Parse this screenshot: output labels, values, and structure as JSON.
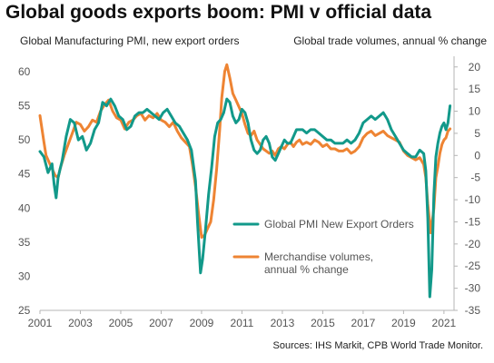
{
  "title": "Global goods exports boom: PMI v official data",
  "source": "Sources: IHS Markit, CPB World Trade Monitor.",
  "colors": {
    "pmi": "#12998a",
    "merch": "#ee8433",
    "axis": "#b5b5b5"
  },
  "chart_data": {
    "type": "line",
    "grid": false,
    "legend_position": "center-right",
    "x_tick_labels": [
      "2001",
      "2003",
      "2005",
      "2007",
      "2009",
      "2011",
      "2013",
      "2015",
      "2017",
      "2019",
      "2021"
    ],
    "xlim": [
      2001,
      2021.5
    ],
    "left_axis": {
      "label": "Global Manufacturing PMI, new export orders",
      "ylim": [
        25,
        62
      ],
      "ticks": [
        25,
        30,
        35,
        40,
        45,
        50,
        55,
        60
      ]
    },
    "right_axis": {
      "label": "Global trade volumes,  annual % change",
      "ylim": [
        -35,
        22
      ],
      "ticks": [
        -35,
        -30,
        -25,
        -20,
        -15,
        -10,
        -5,
        0,
        5,
        10,
        15,
        20
      ]
    },
    "series": [
      {
        "name": "Global PMI New Export Orders",
        "axis": "left",
        "color": "#12998a",
        "points": [
          [
            2001.0,
            48.3
          ],
          [
            2001.2,
            47.5
          ],
          [
            2001.4,
            45.2
          ],
          [
            2001.6,
            46.5
          ],
          [
            2001.7,
            43.5
          ],
          [
            2001.8,
            41.5
          ],
          [
            2001.9,
            44.5
          ],
          [
            2002.1,
            47.0
          ],
          [
            2002.3,
            50.5
          ],
          [
            2002.5,
            53.0
          ],
          [
            2002.7,
            52.5
          ],
          [
            2002.9,
            50.0
          ],
          [
            2003.1,
            50.5
          ],
          [
            2003.3,
            48.5
          ],
          [
            2003.5,
            49.5
          ],
          [
            2003.7,
            51.5
          ],
          [
            2003.9,
            52.5
          ],
          [
            2004.1,
            55.5
          ],
          [
            2004.3,
            55.0
          ],
          [
            2004.5,
            56.0
          ],
          [
            2004.7,
            55.0
          ],
          [
            2004.9,
            53.5
          ],
          [
            2005.1,
            53.0
          ],
          [
            2005.3,
            51.5
          ],
          [
            2005.5,
            52.0
          ],
          [
            2005.7,
            53.5
          ],
          [
            2005.9,
            54.0
          ],
          [
            2006.1,
            54.0
          ],
          [
            2006.3,
            54.5
          ],
          [
            2006.5,
            54.0
          ],
          [
            2006.7,
            53.5
          ],
          [
            2006.9,
            53.0
          ],
          [
            2007.1,
            54.0
          ],
          [
            2007.3,
            54.5
          ],
          [
            2007.5,
            53.5
          ],
          [
            2007.7,
            52.5
          ],
          [
            2007.9,
            52.0
          ],
          [
            2008.1,
            51.0
          ],
          [
            2008.3,
            50.0
          ],
          [
            2008.5,
            48.5
          ],
          [
            2008.7,
            44.0
          ],
          [
            2008.8,
            38.0
          ],
          [
            2008.9,
            33.0
          ],
          [
            2008.95,
            30.5
          ],
          [
            2009.05,
            32.5
          ],
          [
            2009.2,
            37.0
          ],
          [
            2009.35,
            42.0
          ],
          [
            2009.5,
            46.0
          ],
          [
            2009.65,
            50.5
          ],
          [
            2009.8,
            52.5
          ],
          [
            2009.95,
            53.0
          ],
          [
            2010.1,
            54.0
          ],
          [
            2010.25,
            56.0
          ],
          [
            2010.4,
            55.5
          ],
          [
            2010.55,
            53.5
          ],
          [
            2010.7,
            52.5
          ],
          [
            2010.85,
            53.0
          ],
          [
            2011.0,
            54.5
          ],
          [
            2011.15,
            54.0
          ],
          [
            2011.3,
            52.5
          ],
          [
            2011.45,
            50.0
          ],
          [
            2011.6,
            48.5
          ],
          [
            2011.75,
            48.0
          ],
          [
            2011.9,
            48.5
          ],
          [
            2012.05,
            50.0
          ],
          [
            2012.2,
            50.5
          ],
          [
            2012.35,
            49.5
          ],
          [
            2012.5,
            47.5
          ],
          [
            2012.65,
            47.0
          ],
          [
            2012.8,
            48.0
          ],
          [
            2012.95,
            49.0
          ],
          [
            2013.1,
            50.0
          ],
          [
            2013.25,
            49.5
          ],
          [
            2013.4,
            49.5
          ],
          [
            2013.55,
            50.5
          ],
          [
            2013.7,
            51.5
          ],
          [
            2013.85,
            51.5
          ],
          [
            2014.0,
            51.5
          ],
          [
            2014.2,
            51.0
          ],
          [
            2014.4,
            51.5
          ],
          [
            2014.6,
            51.5
          ],
          [
            2014.8,
            51.0
          ],
          [
            2015.0,
            50.5
          ],
          [
            2015.2,
            50.0
          ],
          [
            2015.4,
            50.0
          ],
          [
            2015.6,
            49.5
          ],
          [
            2015.8,
            49.5
          ],
          [
            2016.0,
            49.5
          ],
          [
            2016.2,
            50.0
          ],
          [
            2016.4,
            49.5
          ],
          [
            2016.6,
            50.0
          ],
          [
            2016.8,
            51.0
          ],
          [
            2017.0,
            52.5
          ],
          [
            2017.2,
            53.0
          ],
          [
            2017.4,
            53.5
          ],
          [
            2017.6,
            53.0
          ],
          [
            2017.8,
            53.5
          ],
          [
            2018.0,
            54.0
          ],
          [
            2018.2,
            53.0
          ],
          [
            2018.4,
            51.5
          ],
          [
            2018.6,
            50.5
          ],
          [
            2018.8,
            49.5
          ],
          [
            2019.0,
            48.5
          ],
          [
            2019.2,
            48.0
          ],
          [
            2019.4,
            47.5
          ],
          [
            2019.6,
            47.5
          ],
          [
            2019.8,
            48.5
          ],
          [
            2020.0,
            48.0
          ],
          [
            2020.1,
            45.5
          ],
          [
            2020.2,
            38.5
          ],
          [
            2020.3,
            27.0
          ],
          [
            2020.4,
            31.0
          ],
          [
            2020.5,
            42.0
          ],
          [
            2020.6,
            47.5
          ],
          [
            2020.7,
            49.5
          ],
          [
            2020.8,
            51.0
          ],
          [
            2020.9,
            52.0
          ],
          [
            2021.0,
            52.5
          ],
          [
            2021.1,
            51.5
          ],
          [
            2021.2,
            52.5
          ],
          [
            2021.3,
            55.0
          ]
        ]
      },
      {
        "name": "Merchandise volumes, annual % change",
        "axis": "right",
        "color": "#ee8433",
        "points": [
          [
            2001.0,
            9.0
          ],
          [
            2001.1,
            6.0
          ],
          [
            2001.2,
            3.0
          ],
          [
            2001.3,
            0.0
          ],
          [
            2001.45,
            -1.5
          ],
          [
            2001.6,
            -3.0
          ],
          [
            2001.75,
            -4.5
          ],
          [
            2001.9,
            -5.0
          ],
          [
            2002.0,
            -3.0
          ],
          [
            2002.2,
            0.0
          ],
          [
            2002.4,
            2.5
          ],
          [
            2002.6,
            5.0
          ],
          [
            2002.8,
            7.5
          ],
          [
            2003.0,
            7.0
          ],
          [
            2003.2,
            5.5
          ],
          [
            2003.4,
            6.5
          ],
          [
            2003.6,
            8.0
          ],
          [
            2003.8,
            7.5
          ],
          [
            2004.0,
            10.0
          ],
          [
            2004.2,
            11.5
          ],
          [
            2004.4,
            12.5
          ],
          [
            2004.6,
            10.0
          ],
          [
            2004.8,
            8.5
          ],
          [
            2005.0,
            8.0
          ],
          [
            2005.2,
            6.0
          ],
          [
            2005.4,
            7.5
          ],
          [
            2005.6,
            8.0
          ],
          [
            2005.8,
            9.0
          ],
          [
            2006.0,
            9.5
          ],
          [
            2006.2,
            8.0
          ],
          [
            2006.4,
            9.0
          ],
          [
            2006.6,
            8.5
          ],
          [
            2006.8,
            9.5
          ],
          [
            2007.0,
            8.0
          ],
          [
            2007.2,
            7.5
          ],
          [
            2007.4,
            6.5
          ],
          [
            2007.6,
            7.5
          ],
          [
            2007.8,
            5.5
          ],
          [
            2008.0,
            4.0
          ],
          [
            2008.2,
            3.0
          ],
          [
            2008.4,
            2.0
          ],
          [
            2008.55,
            -2.0
          ],
          [
            2008.7,
            -7.0
          ],
          [
            2008.85,
            -13.0
          ],
          [
            2009.0,
            -18.5
          ],
          [
            2009.15,
            -18.0
          ],
          [
            2009.3,
            -16.5
          ],
          [
            2009.45,
            -15.0
          ],
          [
            2009.6,
            -10.0
          ],
          [
            2009.75,
            -3.0
          ],
          [
            2009.9,
            6.0
          ],
          [
            2010.0,
            13.0
          ],
          [
            2010.15,
            19.0
          ],
          [
            2010.25,
            20.5
          ],
          [
            2010.4,
            17.5
          ],
          [
            2010.55,
            14.0
          ],
          [
            2010.7,
            12.5
          ],
          [
            2010.85,
            11.0
          ],
          [
            2011.0,
            9.5
          ],
          [
            2011.15,
            7.0
          ],
          [
            2011.3,
            5.0
          ],
          [
            2011.45,
            4.5
          ],
          [
            2011.6,
            5.5
          ],
          [
            2011.75,
            3.5
          ],
          [
            2011.9,
            2.5
          ],
          [
            2012.05,
            1.5
          ],
          [
            2012.2,
            1.0
          ],
          [
            2012.35,
            0.5
          ],
          [
            2012.5,
            1.0
          ],
          [
            2012.65,
            0.0
          ],
          [
            2012.8,
            1.5
          ],
          [
            2012.95,
            2.0
          ],
          [
            2013.1,
            1.5
          ],
          [
            2013.25,
            2.5
          ],
          [
            2013.4,
            3.0
          ],
          [
            2013.55,
            2.0
          ],
          [
            2013.7,
            3.0
          ],
          [
            2013.85,
            3.5
          ],
          [
            2014.0,
            2.5
          ],
          [
            2014.2,
            3.0
          ],
          [
            2014.4,
            2.5
          ],
          [
            2014.6,
            3.5
          ],
          [
            2014.8,
            3.0
          ],
          [
            2015.0,
            2.0
          ],
          [
            2015.2,
            2.5
          ],
          [
            2015.4,
            1.5
          ],
          [
            2015.6,
            1.5
          ],
          [
            2015.8,
            1.0
          ],
          [
            2016.0,
            1.0
          ],
          [
            2016.2,
            1.5
          ],
          [
            2016.4,
            0.5
          ],
          [
            2016.6,
            1.0
          ],
          [
            2016.8,
            2.0
          ],
          [
            2017.0,
            4.0
          ],
          [
            2017.2,
            5.0
          ],
          [
            2017.4,
            5.5
          ],
          [
            2017.6,
            4.5
          ],
          [
            2017.8,
            5.0
          ],
          [
            2018.0,
            5.5
          ],
          [
            2018.2,
            4.5
          ],
          [
            2018.4,
            4.0
          ],
          [
            2018.6,
            3.5
          ],
          [
            2018.8,
            3.0
          ],
          [
            2019.0,
            1.0
          ],
          [
            2019.2,
            0.0
          ],
          [
            2019.4,
            -0.5
          ],
          [
            2019.6,
            -1.0
          ],
          [
            2019.8,
            -0.5
          ],
          [
            2020.0,
            -2.0
          ],
          [
            2020.1,
            -5.0
          ],
          [
            2020.2,
            -11.0
          ],
          [
            2020.35,
            -17.5
          ],
          [
            2020.5,
            -12.0
          ],
          [
            2020.6,
            -5.0
          ],
          [
            2020.7,
            -2.5
          ],
          [
            2020.8,
            0.5
          ],
          [
            2020.9,
            2.5
          ],
          [
            2021.0,
            3.5
          ],
          [
            2021.1,
            4.0
          ],
          [
            2021.2,
            5.5
          ],
          [
            2021.3,
            6.0
          ]
        ]
      }
    ]
  }
}
